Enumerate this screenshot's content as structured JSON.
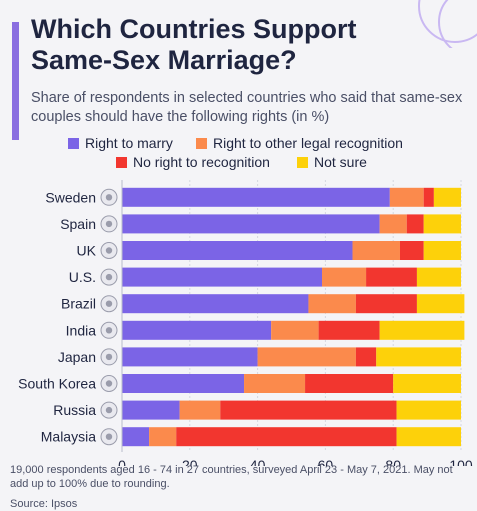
{
  "title": "Which Countries Support Same-Sex Marriage?",
  "subtitle": "Share of respondents in selected countries who said that same-sex couples should have the following rights (in %)",
  "footnote": "19,000 respondents aged 16 - 74 in 27 countries, surveyed April 23 - May 7, 2021. May not add up to 100% due to rounding.",
  "source": "Source: Ipsos",
  "icons": {
    "decoration": "circle-outline-decoration",
    "flag": "country-flag-icon"
  },
  "chart_data": {
    "type": "bar",
    "orientation": "horizontal",
    "stacked": true,
    "title": "Which Countries Support Same-Sex Marriage?",
    "subtitle": "Share of respondents in selected countries who said that same-sex couples should have the following rights (in %)",
    "xlabel": "",
    "ylabel": "",
    "xlim": [
      0,
      100
    ],
    "xticks": [
      "0",
      "20",
      "40",
      "60",
      "80",
      "100"
    ],
    "grid": true,
    "legend_position": "top",
    "categories": [
      "Sweden",
      "Spain",
      "UK",
      "U.S.",
      "Brazil",
      "India",
      "Japan",
      "South Korea",
      "Russia",
      "Malaysia"
    ],
    "series": [
      {
        "name": "Right to marry",
        "color": "#7b64e6",
        "values": [
          79,
          76,
          68,
          59,
          55,
          44,
          40,
          36,
          17,
          8
        ]
      },
      {
        "name": "Right to other legal recognition",
        "color": "#fb8a4c",
        "values": [
          10,
          8,
          14,
          13,
          14,
          14,
          29,
          18,
          12,
          8
        ]
      },
      {
        "name": "No right to recognition",
        "color": "#f2362f",
        "values": [
          3,
          5,
          7,
          15,
          18,
          18,
          6,
          26,
          52,
          65
        ]
      },
      {
        "name": "Not sure",
        "color": "#fdd10a",
        "values": [
          8,
          11,
          11,
          13,
          14,
          25,
          25,
          20,
          19,
          19
        ]
      }
    ]
  }
}
